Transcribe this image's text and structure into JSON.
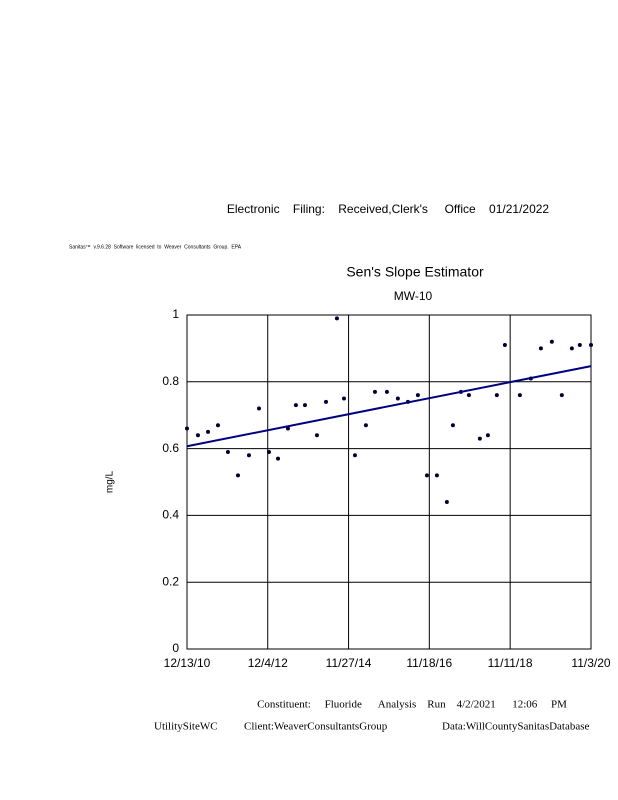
{
  "header": "Electronic    Filing:    Received,Clerk's     Office    01/21/2022",
  "software_note": "Sanitas™  v.9.6.28  Software  licensed  to  Weaver  Consultants  Group.  EPA",
  "footer": {
    "constituent": "Constituent:     Fluoride      Analysis    Run    4/2/2021      12:06     PM",
    "site": "UtilitySiteWC",
    "client": "Client:WeaverConsultantsGroup",
    "data": "Data:WillCountySanitasDatabase"
  },
  "chart_data": {
    "type": "scatter",
    "title": "Sen's Slope Estimator",
    "subtitle": "MW-10",
    "y_label": "mg/L",
    "x": [
      "12/13/10",
      "3/21/11",
      "6/19/11",
      "9/16/11",
      "12/14/11",
      "3/13/12",
      "6/19/12",
      "9/17/12",
      "12/15/12",
      "3/6/13",
      "6/3/13",
      "8/13/13",
      "11/2/13",
      "2/17/14",
      "5/9/14",
      "8/15/14",
      "10/17/14",
      "1/23/15",
      "5/1/15",
      "7/21/15",
      "11/5/15",
      "2/11/16",
      "5/11/16",
      "8/8/16",
      "10/28/16",
      "1/25/17",
      "4/24/17",
      "6/17/17",
      "8/28/17",
      "11/7/17",
      "2/13/18",
      "4/26/18",
      "7/15/18",
      "9/25/18",
      "2/6/19",
      "5/15/19",
      "8/13/19",
      "11/19/19",
      "2/16/20",
      "5/16/20",
      "7/26/20",
      "11/3/20"
    ],
    "values": [
      0.66,
      0.64,
      0.65,
      0.67,
      0.59,
      0.52,
      0.58,
      0.72,
      0.59,
      0.57,
      0.66,
      0.73,
      0.73,
      0.64,
      0.74,
      0.99,
      0.75,
      0.58,
      0.67,
      0.77,
      0.77,
      0.75,
      0.74,
      0.76,
      0.52,
      0.52,
      0.44,
      0.67,
      0.77,
      0.76,
      0.63,
      0.64,
      0.76,
      0.91,
      0.76,
      0.81,
      0.9,
      0.92,
      0.76,
      0.9,
      0.91,
      0.91
    ],
    "color": "#000033",
    "trend": {
      "x": [
        "12/13/10",
        "11/3/20"
      ],
      "values": [
        0.607,
        0.847
      ],
      "color": "#000080"
    },
    "xlim": [
      "12/13/10",
      "11/3/20"
    ],
    "xticks": [
      "12/13/10",
      "12/4/12",
      "11/27/14",
      "11/18/16",
      "11/11/18",
      "11/3/20"
    ],
    "ylim": [
      0,
      1
    ],
    "yticks": [
      0,
      0.2,
      0.4,
      0.6,
      0.8,
      1
    ],
    "grid": true
  }
}
